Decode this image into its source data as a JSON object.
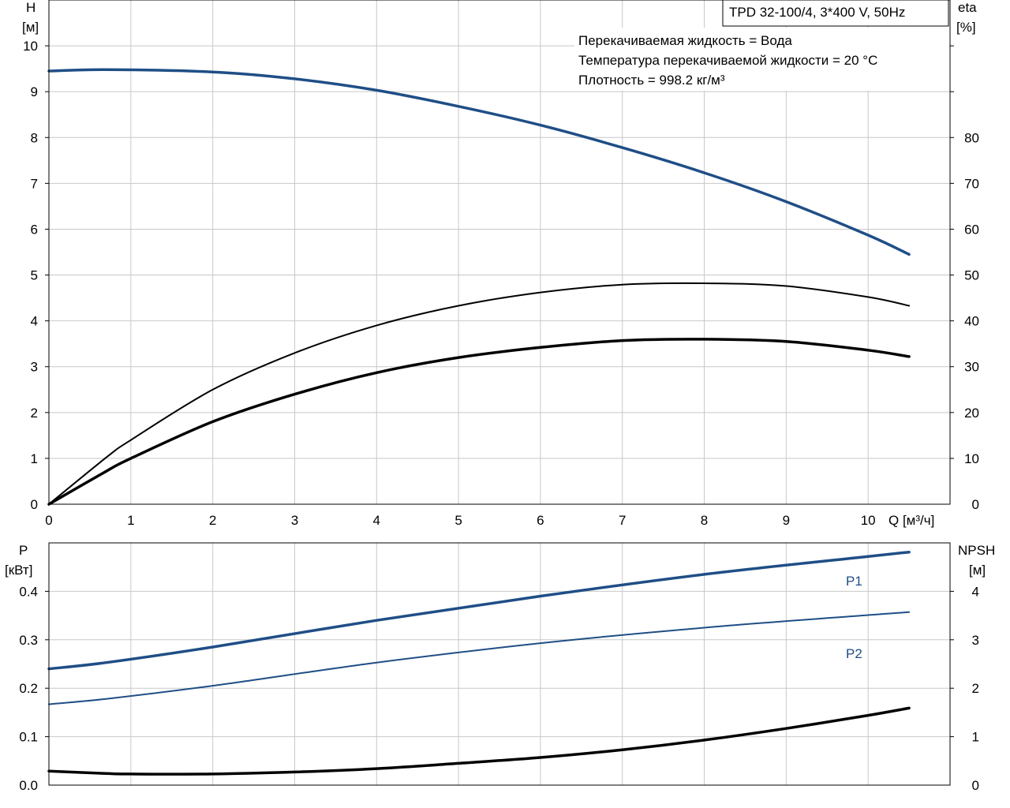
{
  "title_box": "TPD 32-100/4, 3*400 V, 50Hz",
  "info_lines": [
    "Перекачиваемая жидкость = Вода",
    "Температура перекачиваемой жидкости = 20 °C",
    "Плотность = 998.2 кг/м³"
  ],
  "colors": {
    "blue": "#1f4e86",
    "black": "#000000",
    "grid": "#c8c8c8"
  },
  "chart_data": [
    {
      "type": "line",
      "grid": true,
      "xlabel": "Q [м³/ч]",
      "xlim": [
        0,
        11
      ],
      "xticks": [
        0,
        1,
        2,
        3,
        4,
        5,
        6,
        7,
        8,
        9,
        10
      ],
      "ylabel_left": [
        "H",
        "[м]"
      ],
      "ylim_left": [
        0,
        11
      ],
      "yticks_left": [
        0,
        1,
        2,
        3,
        4,
        5,
        6,
        7,
        8,
        9,
        10
      ],
      "ylabel_right": [
        "eta",
        "[%]"
      ],
      "ylim_right": [
        0,
        110
      ],
      "yticks_right": [
        0,
        10,
        20,
        30,
        40,
        50,
        60,
        70,
        80
      ],
      "series": [
        {
          "key": "H",
          "axis": "left",
          "color": "#1f4e86",
          "width": 3.5,
          "x": [
            0,
            0.7,
            2,
            3,
            4,
            5,
            6,
            7,
            8,
            9,
            10,
            10.5
          ],
          "y": [
            9.45,
            9.48,
            9.43,
            9.28,
            9.03,
            8.68,
            8.27,
            7.78,
            7.23,
            6.6,
            5.87,
            5.45
          ]
        },
        {
          "key": "eta",
          "axis": "right",
          "color": "#000000",
          "width": 2,
          "x": [
            0,
            0.7,
            1,
            2,
            3,
            4,
            5,
            6,
            7,
            8,
            9,
            10,
            10.5
          ],
          "y": [
            0,
            10.2,
            14,
            25,
            33,
            39,
            43.3,
            46.2,
            47.9,
            48.2,
            47.6,
            45.2,
            43.3
          ]
        },
        {
          "key": "eta_total",
          "axis": "right",
          "color": "#000000",
          "width": 3.5,
          "x": [
            0,
            0.7,
            1,
            2,
            3,
            4,
            5,
            6,
            7,
            8,
            9,
            10,
            10.5
          ],
          "y": [
            0,
            7.2,
            10,
            18,
            24,
            28.7,
            32,
            34.2,
            35.7,
            36,
            35.5,
            33.6,
            32.2
          ]
        }
      ]
    },
    {
      "type": "line",
      "grid": true,
      "xlim": [
        0,
        11
      ],
      "ylabel_left": [
        "P",
        "[кВт]"
      ],
      "ylim_left": [
        0,
        0.5
      ],
      "yticks_left": [
        0.0,
        0.1,
        0.2,
        0.3,
        0.4
      ],
      "yticks_left_labels": [
        "0.0",
        "0.1",
        "0.2",
        "0.3",
        "0.4"
      ],
      "ylabel_right": [
        "NPSH",
        "[м]"
      ],
      "ylim_right": [
        0,
        5
      ],
      "yticks_right": [
        0,
        1,
        2,
        3,
        4
      ],
      "series": [
        {
          "key": "P1",
          "name": "P1",
          "axis": "left",
          "color": "#1f4e86",
          "width": 3.5,
          "x": [
            0,
            0.7,
            2,
            4,
            6,
            8,
            10,
            10.5
          ],
          "y": [
            0.24,
            0.253,
            0.285,
            0.34,
            0.39,
            0.435,
            0.472,
            0.481
          ]
        },
        {
          "key": "P2",
          "name": "P2",
          "axis": "left",
          "color": "#1f4e86",
          "width": 2,
          "x": [
            0,
            0.7,
            2,
            4,
            6,
            8,
            10,
            10.5
          ],
          "y": [
            0.167,
            0.178,
            0.205,
            0.253,
            0.293,
            0.325,
            0.351,
            0.357
          ]
        },
        {
          "key": "NPSH",
          "axis": "right",
          "color": "#000000",
          "width": 3.5,
          "x": [
            0,
            0.7,
            1,
            2,
            3,
            4,
            5,
            6,
            7,
            8,
            9,
            10,
            10.5
          ],
          "y": [
            0.29,
            0.24,
            0.23,
            0.23,
            0.27,
            0.34,
            0.45,
            0.57,
            0.73,
            0.93,
            1.17,
            1.44,
            1.59
          ]
        }
      ]
    }
  ]
}
